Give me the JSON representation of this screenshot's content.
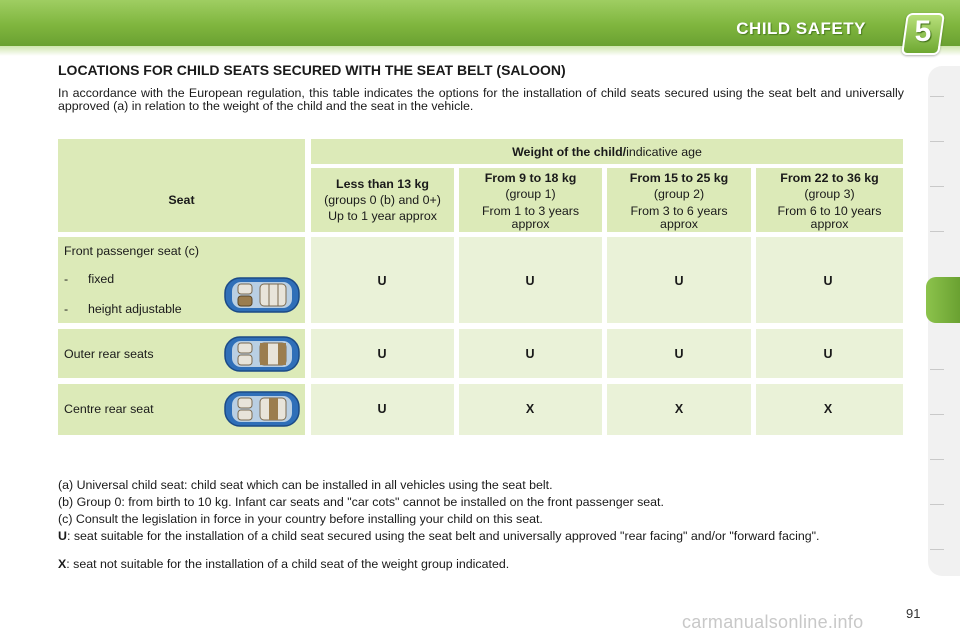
{
  "header": {
    "title": "CHILD SAFETY",
    "chapter": "5"
  },
  "section_title": "LOCATIONS FOR CHILD SEATS SECURED WITH THE SEAT BELT (SALOON)",
  "intro": "In accordance with the European regulation, this table indicates the options for the installation of child seats secured using the seat belt and universally approved (a) in relation to the weight of the child and the seat in the vehicle.",
  "table": {
    "seat_header": "Seat",
    "weight_header_bold": "Weight of the child/",
    "weight_header_rest": "indicative age",
    "groups": [
      {
        "title": "Less than 13 kg",
        "line1": "(groups 0 (b) and 0+)",
        "line2": "Up to 1 year approx"
      },
      {
        "title": "From 9 to 18 kg",
        "line1": "(group 1)",
        "line2": "From 1 to 3 years approx"
      },
      {
        "title": "From 15 to 25 kg",
        "line1": "(group 2)",
        "line2": "From 3 to 6 years approx"
      },
      {
        "title": "From 22 to 36 kg",
        "line1": "(group 3)",
        "line2": "From 6 to 10 years approx"
      }
    ],
    "rows": [
      {
        "seat": "Front passenger seat (c)",
        "sub1_dash": "-",
        "sub1": "fixed",
        "sub2_dash": "-",
        "sub2": "height adjustable",
        "values": [
          "U",
          "U",
          "U",
          "U"
        ]
      },
      {
        "seat": "Outer rear seats",
        "values": [
          "U",
          "U",
          "U",
          "U"
        ]
      },
      {
        "seat": "Centre rear seat",
        "values": [
          "U",
          "X",
          "X",
          "X"
        ]
      }
    ]
  },
  "notes": {
    "a": "(a) Universal child seat: child seat which can be installed in all vehicles using the seat belt.",
    "b": "(b) Group 0: from birth to 10 kg. Infant car seats and \"car cots\" cannot be installed on the front passenger seat.",
    "c": "(c) Consult the legislation in force in your country before installing your child on this seat.",
    "u_key": "U",
    "u_text": ": seat suitable for the installation of a child seat secured using the seat belt and universally approved \"rear facing\" and/or \"forward facing\".",
    "x_key": "X",
    "x_text": ": seat not suitable for the installation of a child seat of the weight group indicated."
  },
  "page_number": "91",
  "footer_watermark": "carmanualsonline.info",
  "colors": {
    "accent": "#7fb53e",
    "table_header": "#dceab8",
    "table_body": "#eaf2d8"
  }
}
